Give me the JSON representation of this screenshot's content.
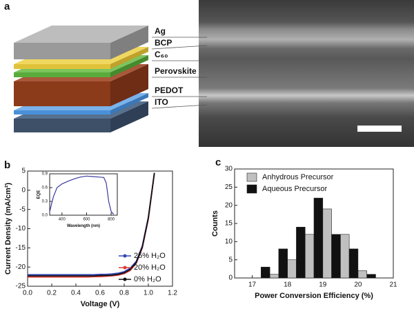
{
  "panel_labels": [
    "a",
    "b",
    "c"
  ],
  "diagram": {
    "layers": [
      "Ag",
      "BCP",
      "C₆₀",
      "Perovskite",
      "PEDOT",
      "ITO"
    ]
  },
  "chart_data": [
    {
      "type": "line",
      "xlabel": "Voltage (V)",
      "ylabel": "Current Density (mA/cm²)",
      "x": [
        0,
        0.05,
        0.1,
        0.15,
        0.2,
        0.25,
        0.3,
        0.35,
        0.4,
        0.45,
        0.5,
        0.55,
        0.6,
        0.65,
        0.7,
        0.75,
        0.8,
        0.85,
        0.9,
        0.95,
        1.0,
        1.05
      ],
      "series": [
        {
          "name": "25% H₂O",
          "color": "#3347b8",
          "values": [
            -22.0,
            -22.0,
            -22.0,
            -22.0,
            -22.0,
            -22.0,
            -22.0,
            -22.0,
            -22.0,
            -22.0,
            -22.0,
            -22.0,
            -21.9,
            -21.9,
            -21.8,
            -21.6,
            -21.2,
            -20.3,
            -18.5,
            -14.5,
            -7.0,
            4.5
          ]
        },
        {
          "name": "20% H₂O",
          "color": "#e03a3a",
          "values": [
            -22.6,
            -22.6,
            -22.6,
            -22.6,
            -22.6,
            -22.6,
            -22.6,
            -22.6,
            -22.6,
            -22.6,
            -22.6,
            -22.5,
            -22.5,
            -22.4,
            -22.3,
            -22.1,
            -21.7,
            -20.9,
            -19.0,
            -15.0,
            -7.5,
            4.5
          ]
        },
        {
          "name": "0% H₂O",
          "color": "#111111",
          "values": [
            -22.3,
            -22.3,
            -22.3,
            -22.3,
            -22.3,
            -22.3,
            -22.3,
            -22.3,
            -22.3,
            -22.3,
            -22.3,
            -22.3,
            -22.2,
            -22.2,
            -22.1,
            -21.9,
            -21.5,
            -20.6,
            -18.8,
            -14.8,
            -7.2,
            4.5
          ]
        }
      ],
      "xlim": [
        0,
        1.2
      ],
      "xticks": [
        {
          "value": 0,
          "label": "0.0"
        },
        0.2,
        0.4,
        0.6,
        0.8,
        {
          "value": 1,
          "label": "1.0"
        },
        1.2
      ],
      "ylim": [
        -25,
        5
      ],
      "yticks": [
        -25,
        -20,
        -15,
        -10,
        -5,
        0,
        5
      ],
      "legend": "lower-right"
    },
    {
      "type": "line",
      "xlabel": "Wavelength (nm)",
      "ylabel": "EQE",
      "x": [
        300,
        330,
        360,
        400,
        450,
        500,
        550,
        600,
        650,
        700,
        740,
        760,
        780,
        800,
        820
      ],
      "series": [
        {
          "color": "#3a3aa0",
          "values": [
            0.08,
            0.4,
            0.6,
            0.68,
            0.74,
            0.79,
            0.83,
            0.85,
            0.84,
            0.83,
            0.82,
            0.7,
            0.3,
            0.08,
            0.02
          ]
        }
      ],
      "xlim": [
        300,
        850
      ],
      "xticks": [
        400,
        600,
        800
      ],
      "ylim": [
        0,
        0.9
      ],
      "yticks": [
        {
          "value": 0,
          "label": "0.0"
        },
        0.3,
        0.6,
        0.9
      ]
    },
    {
      "type": "histogram",
      "xlabel": "Power Conversion Efficiency (%)",
      "ylabel": "Counts",
      "bins": [
        17.25,
        17.75,
        18.25,
        18.75,
        19.25,
        19.75,
        20.25,
        20.75
      ],
      "series": [
        {
          "name": "Anhydrous Precursor",
          "color": "#c0c0c0",
          "values": [
            1,
            5,
            12,
            19,
            12,
            2,
            0
          ]
        },
        {
          "name": "Aqueous Precursor",
          "color": "#111111",
          "values": [
            3,
            8,
            14,
            22,
            12,
            8,
            1
          ]
        }
      ],
      "xlim": [
        16.5,
        21
      ],
      "xticks": [
        17,
        18,
        19,
        20,
        21
      ],
      "ylim": [
        0,
        30
      ],
      "yticks": [
        0,
        5,
        10,
        15,
        20,
        25,
        30
      ],
      "legend": "upper-left"
    }
  ]
}
